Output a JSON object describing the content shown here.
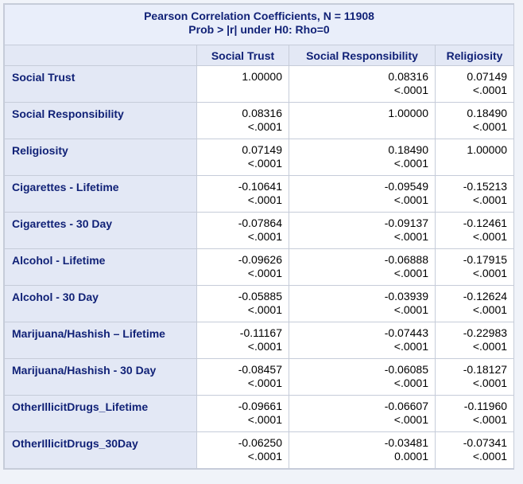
{
  "caption": {
    "line1": "Pearson Correlation Coefficients, N = 11908",
    "line2": "Prob > |r| under H0: Rho=0"
  },
  "columns": [
    "Social Trust",
    "Social Responsibility",
    "Religiosity"
  ],
  "rows": [
    {
      "label": "Social Trust",
      "cells": [
        [
          "1.00000",
          ""
        ],
        [
          "0.08316",
          "<.0001"
        ],
        [
          "0.07149",
          "<.0001"
        ]
      ]
    },
    {
      "label": "Social Responsibility",
      "cells": [
        [
          "0.08316",
          "<.0001"
        ],
        [
          "1.00000",
          ""
        ],
        [
          "0.18490",
          "<.0001"
        ]
      ]
    },
    {
      "label": "Religiosity",
      "cells": [
        [
          "0.07149",
          "<.0001"
        ],
        [
          "0.18490",
          "<.0001"
        ],
        [
          "1.00000",
          ""
        ]
      ]
    },
    {
      "label": "Cigarettes - Lifetime",
      "cells": [
        [
          "-0.10641",
          "<.0001"
        ],
        [
          "-0.09549",
          "<.0001"
        ],
        [
          "-0.15213",
          "<.0001"
        ]
      ]
    },
    {
      "label": "Cigarettes - 30 Day",
      "cells": [
        [
          "-0.07864",
          "<.0001"
        ],
        [
          "-0.09137",
          "<.0001"
        ],
        [
          "-0.12461",
          "<.0001"
        ]
      ]
    },
    {
      "label": "Alcohol - Lifetime",
      "cells": [
        [
          "-0.09626",
          "<.0001"
        ],
        [
          "-0.06888",
          "<.0001"
        ],
        [
          "-0.17915",
          "<.0001"
        ]
      ]
    },
    {
      "label": "Alcohol - 30 Day",
      "cells": [
        [
          "-0.05885",
          "<.0001"
        ],
        [
          "-0.03939",
          "<.0001"
        ],
        [
          "-0.12624",
          "<.0001"
        ]
      ]
    },
    {
      "label": "Marijuana/Hashish – Lifetime",
      "cells": [
        [
          "-0.11167",
          "<.0001"
        ],
        [
          "-0.07443",
          "<.0001"
        ],
        [
          "-0.22983",
          "<.0001"
        ]
      ]
    },
    {
      "label": "Marijuana/Hashish - 30 Day",
      "cells": [
        [
          "-0.08457",
          "<.0001"
        ],
        [
          "-0.06085",
          "<.0001"
        ],
        [
          "-0.18127",
          "<.0001"
        ]
      ]
    },
    {
      "label": "OtherIllicitDrugs_Lifetime",
      "cells": [
        [
          "-0.09661",
          "<.0001"
        ],
        [
          "-0.06607",
          "<.0001"
        ],
        [
          "-0.11960",
          "<.0001"
        ]
      ]
    },
    {
      "label": "OtherIllicitDrugs_30Day",
      "cells": [
        [
          "-0.06250",
          "<.0001"
        ],
        [
          "-0.03481",
          "0.0001"
        ],
        [
          "-0.07341",
          "<.0001"
        ]
      ]
    }
  ]
}
